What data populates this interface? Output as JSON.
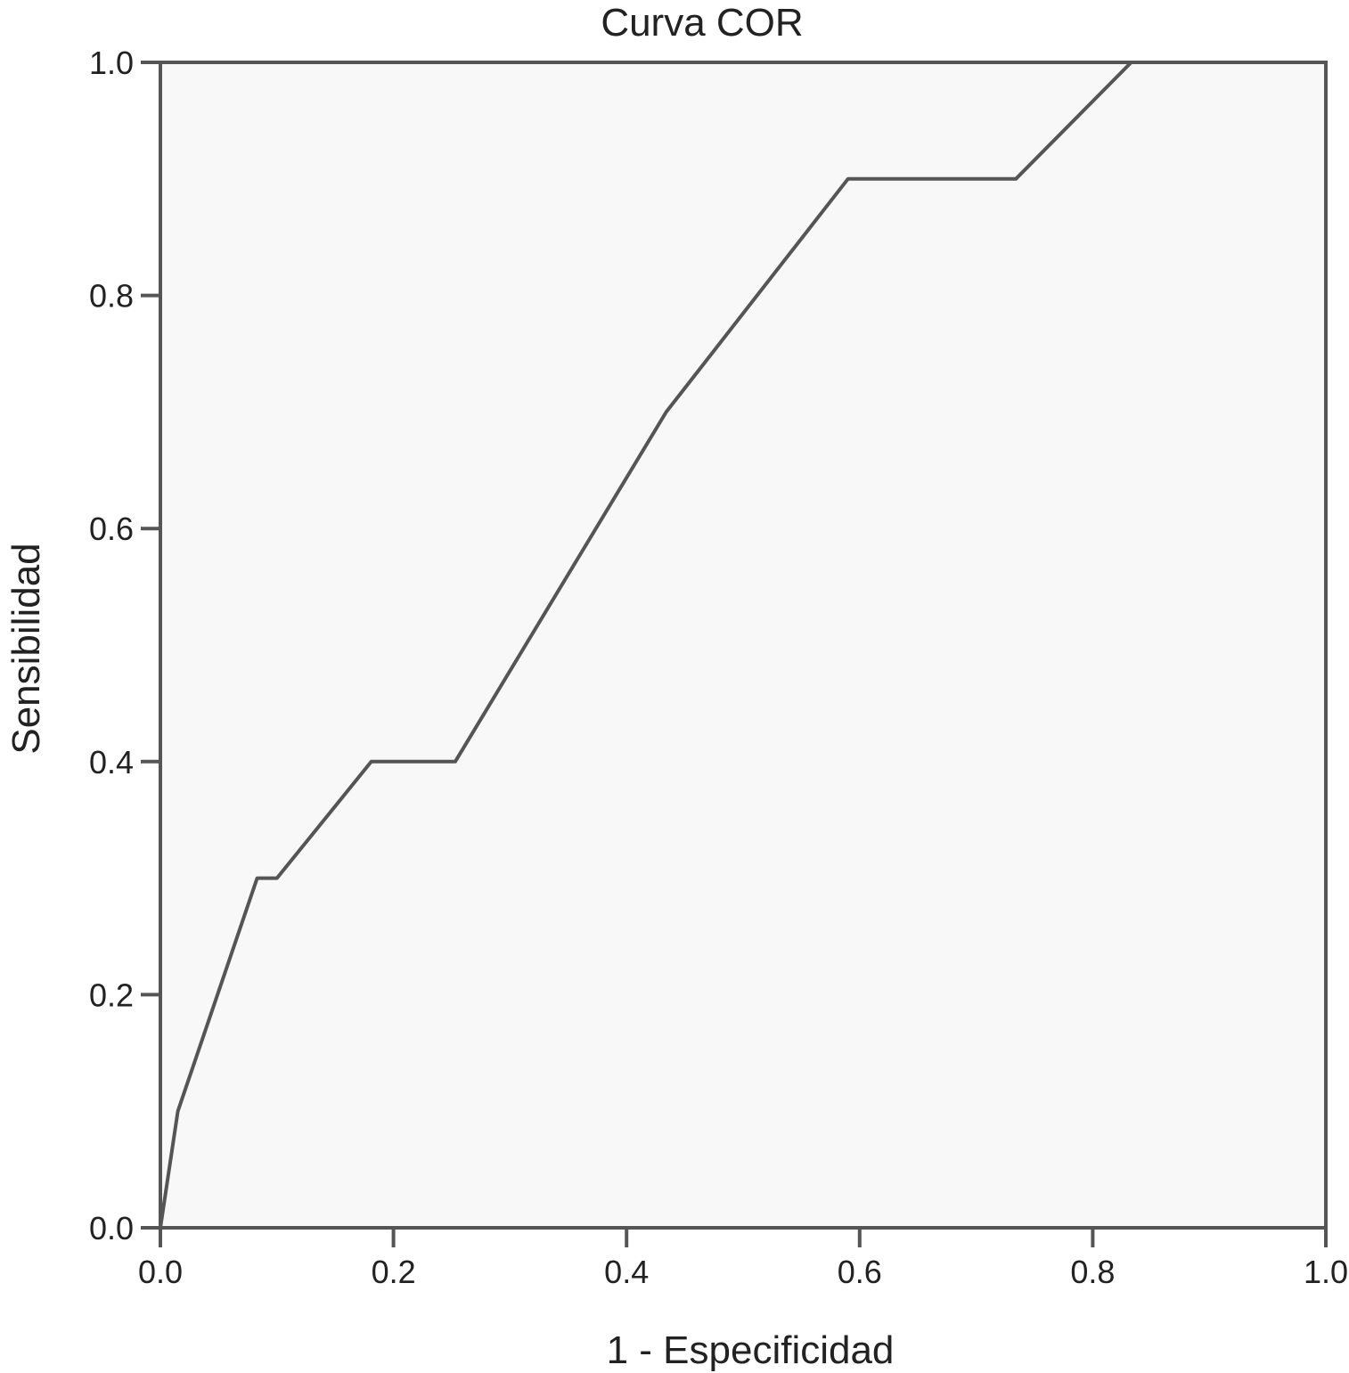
{
  "chart_data": {
    "type": "line",
    "title": "Curva COR",
    "xlabel": "1 - Especificidad",
    "ylabel": "Sensibilidad",
    "xlim": [
      0,
      1
    ],
    "ylim": [
      0,
      1
    ],
    "xticks": [
      "0.0",
      "0.2",
      "0.4",
      "0.6",
      "0.8",
      "1.0"
    ],
    "yticks": [
      "0.0",
      "0.2",
      "0.4",
      "0.6",
      "0.8",
      "1.0"
    ],
    "grid": false,
    "series": [
      {
        "x": [
          0.0,
          0.015,
          0.083,
          0.1,
          0.181,
          0.253,
          0.434,
          0.59,
          0.734,
          0.833,
          1.0
        ],
        "y": [
          0.0,
          0.1,
          0.3,
          0.3,
          0.4,
          0.4,
          0.7,
          0.9,
          0.9,
          1.0,
          1.0
        ]
      }
    ],
    "colors": {
      "line": "#555555",
      "plot_bg": "#f8f8f8",
      "axis": "#555555"
    }
  }
}
